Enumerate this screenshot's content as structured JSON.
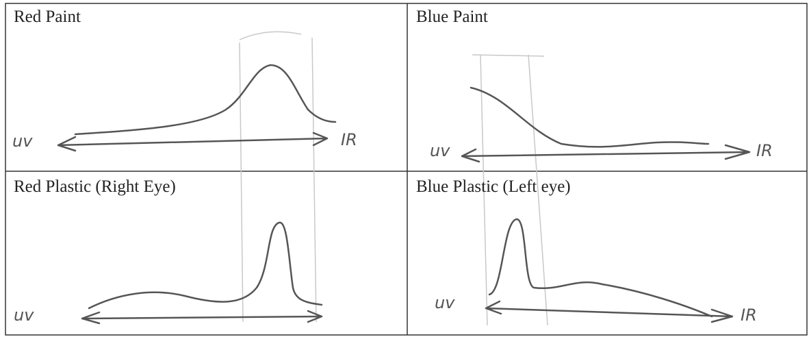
{
  "table": {
    "cells": [
      {
        "title": "Red Paint",
        "left_label": "uv",
        "right_label": "IR"
      },
      {
        "title": "Blue Paint",
        "left_label": "uv",
        "right_label": "IR"
      },
      {
        "title": "Red Plastic (Right Eye)",
        "left_label": "uv",
        "right_label": null
      },
      {
        "title": "Blue Plastic (Left eye)",
        "left_label": "uv",
        "right_label": "IR"
      }
    ]
  }
}
